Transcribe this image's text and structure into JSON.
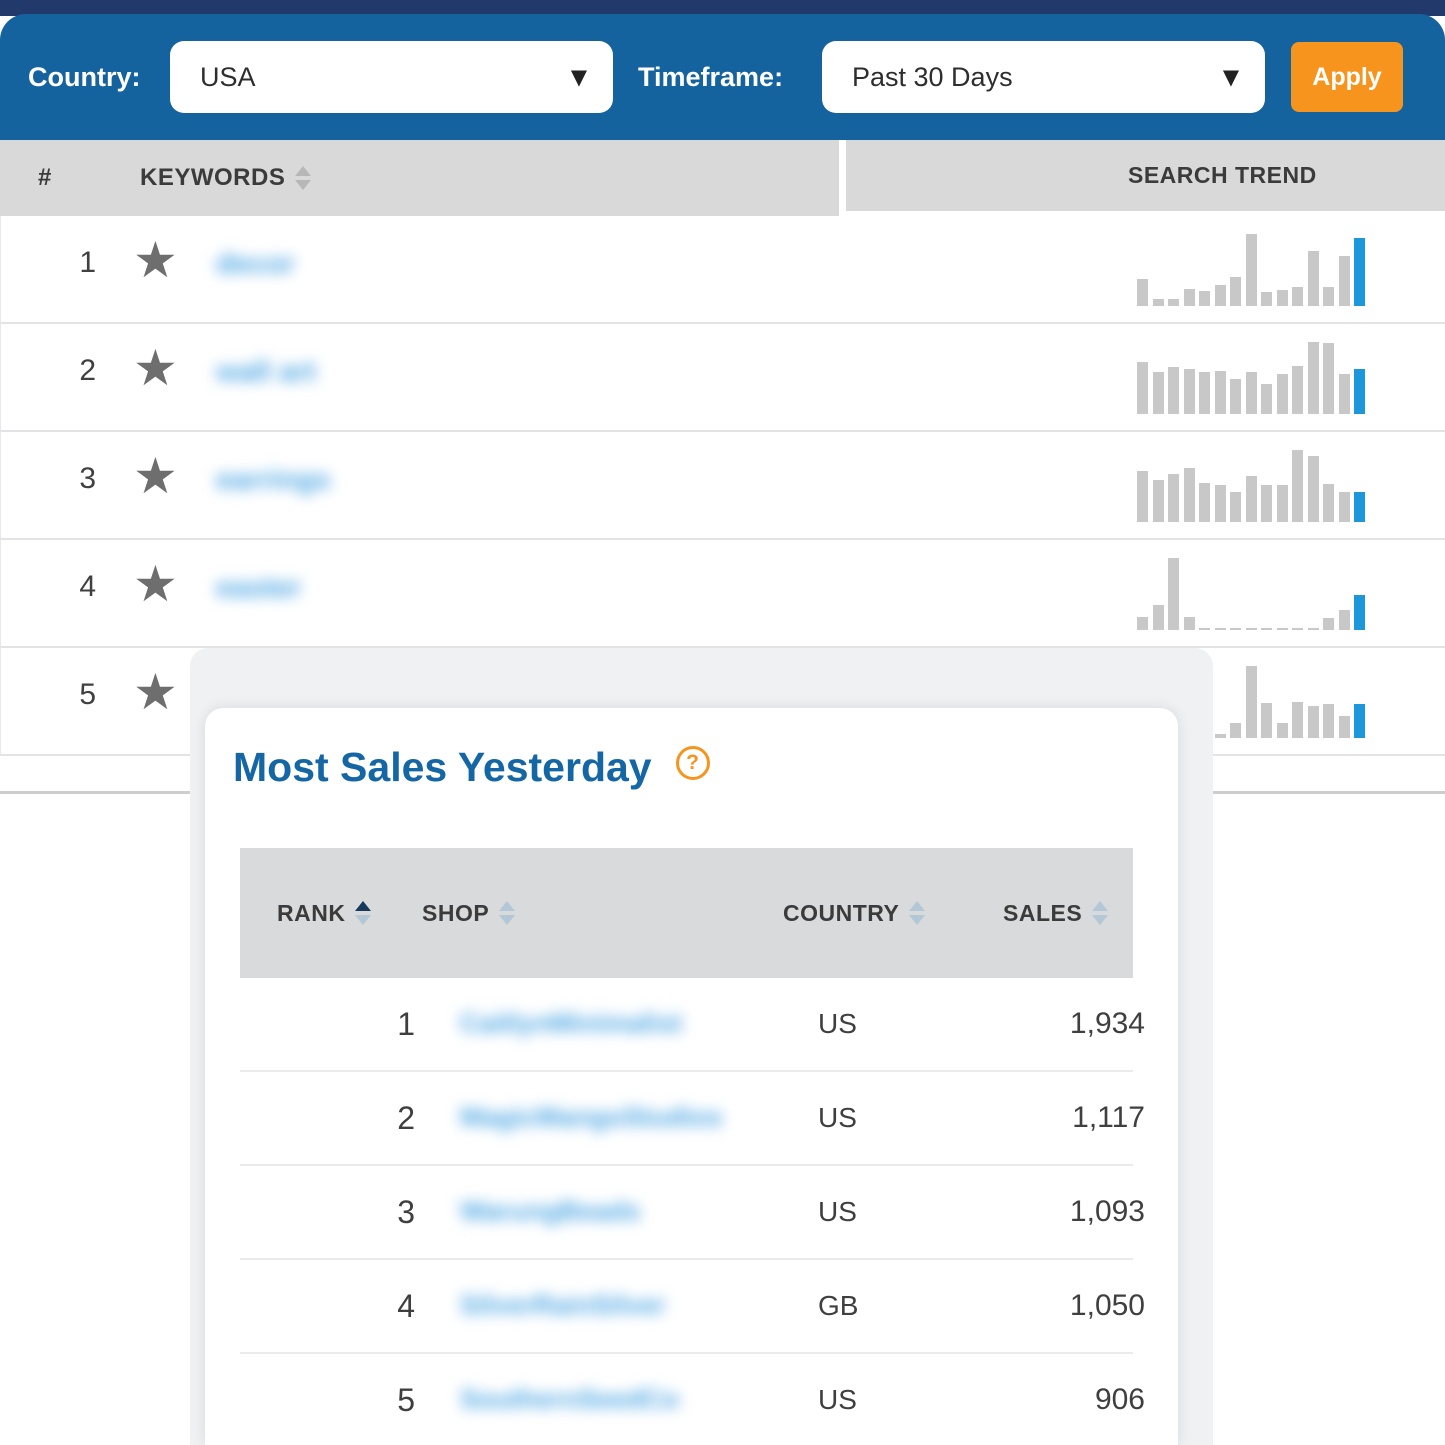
{
  "filter_bar": {
    "country_label": "Country:",
    "country_value": "USA",
    "timeframe_label": "Timeframe:",
    "timeframe_value": "Past 30 Days",
    "apply_label": "Apply"
  },
  "keywords_table": {
    "rank_header": "#",
    "keywords_header": "KEYWORDS",
    "search_trend_header": "SEARCH TREND",
    "rows": [
      {
        "rank": "1",
        "keyword": "decor",
        "keyword_blurred": true,
        "trend": [
          38,
          10,
          10,
          24,
          21,
          29,
          40,
          100,
          19,
          22,
          26,
          76,
          27,
          69,
          95
        ]
      },
      {
        "rank": "2",
        "keyword": "wall art",
        "keyword_blurred": true,
        "trend": [
          72,
          58,
          65,
          63,
          58,
          60,
          49,
          58,
          42,
          56,
          67,
          100,
          98,
          56,
          63
        ]
      },
      {
        "rank": "3",
        "keyword": "earrings",
        "keyword_blurred": true,
        "trend": [
          71,
          59,
          67,
          75,
          54,
          52,
          41,
          64,
          51,
          51,
          100,
          92,
          53,
          41,
          42
        ]
      },
      {
        "rank": "4",
        "keyword": "easter",
        "keyword_blurred": true,
        "trend": [
          18,
          35,
          100,
          18,
          2,
          2,
          2,
          2,
          2,
          2,
          2,
          2,
          16,
          28,
          48
        ]
      },
      {
        "rank": "5",
        "keyword": "",
        "keyword_blurred": true,
        "trend": [
          6,
          21,
          100,
          48,
          21,
          50,
          45,
          47,
          30,
          47
        ]
      }
    ]
  },
  "modal": {
    "title": "Most Sales Yesterday",
    "help_icon": "?",
    "columns": {
      "rank": "RANK",
      "shop": "SHOP",
      "country": "COUNTRY",
      "sales": "SALES"
    },
    "sorted_by": "RANK ascending",
    "rows": [
      {
        "rank": "1",
        "shop": "CaitlynMinimalist",
        "shop_blurred": true,
        "country": "US",
        "sales": "1,934"
      },
      {
        "rank": "2",
        "shop": "MagicMangoStudios",
        "shop_blurred": true,
        "country": "US",
        "sales": "1,117"
      },
      {
        "rank": "3",
        "shop": "WarungBeads",
        "shop_blurred": true,
        "country": "US",
        "sales": "1,093"
      },
      {
        "rank": "4",
        "shop": "SilverRainSilver",
        "shop_blurred": true,
        "country": "GB",
        "sales": "1,050"
      },
      {
        "rank": "5",
        "shop": "SouthernSeedCo",
        "shop_blurred": true,
        "country": "US",
        "sales": "906"
      }
    ]
  },
  "colors": {
    "top_navy": "#223A6B",
    "bar_blue": "#15639E",
    "apply_orange": "#F7941E",
    "header_gray": "#D9D9D9",
    "title_blue": "#1566A4",
    "link_blue_blurred": "#4BA5E3",
    "spark_gray": "#C8C8C8",
    "spark_highlight_blue": "#1D97DC",
    "star_gray": "#6E6E6E"
  },
  "chart_data": [
    {
      "type": "bar",
      "title": "Search trend sparkline, keyword row 1 (keyword blurred)",
      "x": "time buckets over Past 30 Days",
      "values": [
        38,
        10,
        10,
        24,
        21,
        29,
        40,
        100,
        19,
        22,
        26,
        76,
        27,
        69,
        95
      ],
      "ylim": [
        0,
        100
      ],
      "legend": "none",
      "grid": false,
      "note": "last bar highlighted blue"
    },
    {
      "type": "bar",
      "title": "Search trend sparkline, keyword row 2 (keyword blurred)",
      "x": "time buckets over Past 30 Days",
      "values": [
        72,
        58,
        65,
        63,
        58,
        60,
        49,
        58,
        42,
        56,
        67,
        100,
        98,
        56,
        63
      ],
      "ylim": [
        0,
        100
      ],
      "legend": "none",
      "grid": false,
      "note": "last bar highlighted blue"
    },
    {
      "type": "bar",
      "title": "Search trend sparkline, keyword row 3 (keyword blurred)",
      "x": "time buckets over Past 30 Days",
      "values": [
        71,
        59,
        67,
        75,
        54,
        52,
        41,
        64,
        51,
        51,
        100,
        92,
        53,
        41,
        42
      ],
      "ylim": [
        0,
        100
      ],
      "legend": "none",
      "grid": false,
      "note": "last bar highlighted blue"
    },
    {
      "type": "bar",
      "title": "Search trend sparkline, keyword row 4 (keyword blurred)",
      "x": "time buckets over Past 30 Days",
      "values": [
        18,
        35,
        100,
        18,
        2,
        2,
        2,
        2,
        2,
        2,
        2,
        2,
        16,
        28,
        48
      ],
      "ylim": [
        0,
        100
      ],
      "legend": "none",
      "grid": false,
      "note": "last bar highlighted blue"
    },
    {
      "type": "bar",
      "title": "Search trend sparkline, keyword row 5 (left portion hidden behind overlay card)",
      "x": "time buckets over Past 30 Days",
      "values": [
        6,
        21,
        100,
        48,
        21,
        50,
        45,
        47,
        30,
        47
      ],
      "ylim": [
        0,
        100
      ],
      "legend": "none",
      "grid": false,
      "note": "last bar highlighted blue"
    },
    {
      "type": "table",
      "title": "Most Sales Yesterday",
      "columns": [
        "RANK",
        "SHOP",
        "COUNTRY",
        "SALES"
      ],
      "rows": [
        [
          1,
          "(blurred shop name)",
          "US",
          1934
        ],
        [
          2,
          "(blurred shop name)",
          "US",
          1117
        ],
        [
          3,
          "(blurred shop name)",
          "US",
          1093
        ],
        [
          4,
          "(blurred shop name)",
          "GB",
          1050
        ],
        [
          5,
          "(blurred shop name)",
          "US",
          906
        ]
      ]
    }
  ]
}
